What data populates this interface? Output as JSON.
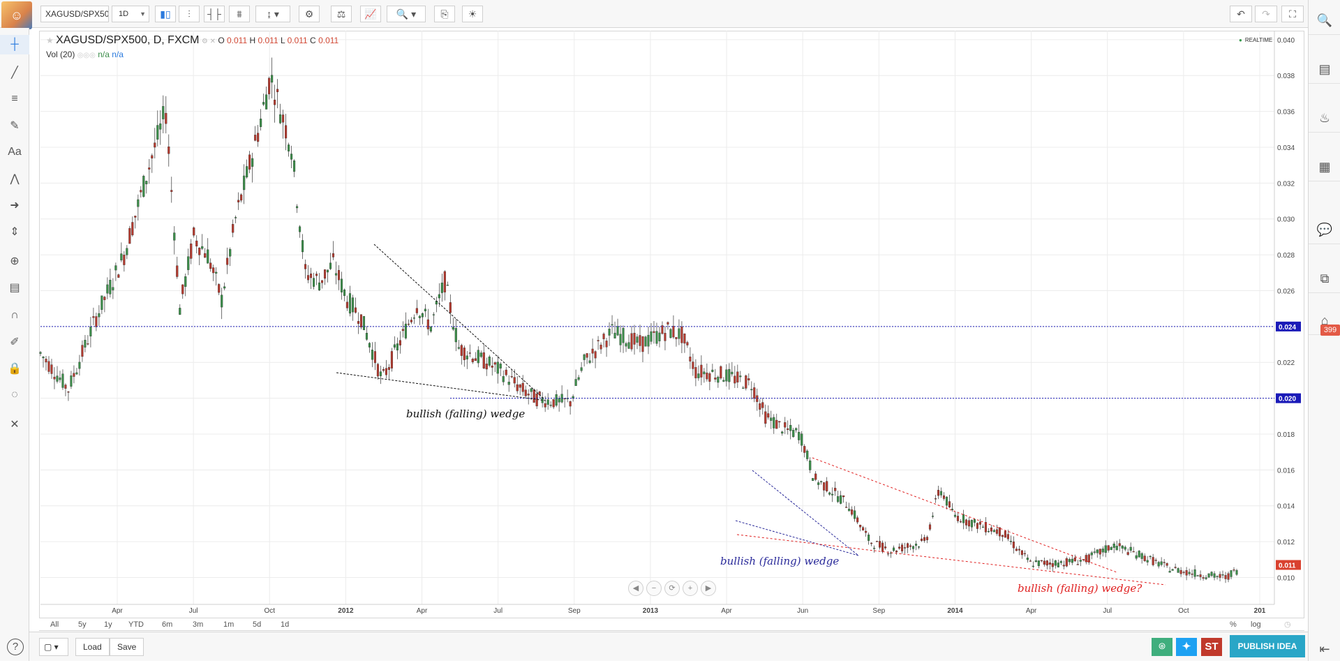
{
  "header": {
    "symbol": "XAGUSD/SPX500",
    "interval": "1D"
  },
  "legend": {
    "title": "XAGUSD/SPX500, D, FXCM",
    "o_label": "O",
    "o_value": "0.011",
    "h_label": "H",
    "h_value": "0.011",
    "l_label": "L",
    "l_value": "0.011",
    "c_label": "C",
    "c_value": "0.011",
    "vol_label": "Vol (20)",
    "vol_value1": "n/a",
    "vol_value2": "n/a"
  },
  "realtime_label": "REALTIME",
  "left_tools": [
    "crosshair-icon",
    "trend-line-icon",
    "horizontal-lines-icon",
    "brush-icon",
    "text-tool-icon",
    "pattern-icon",
    "arrow-icon",
    "measure-icon",
    "zoom-icon",
    "ruler-icon",
    "magnet-icon",
    "pencil-lock-icon",
    "lock-icon",
    "eye-hide-icon",
    "settings-tools-icon"
  ],
  "right_tools": [
    "search-icon",
    "news-icon",
    "hot-icon",
    "calendar-icon",
    "chat-icon",
    "ideas-icon",
    "alerts-icon"
  ],
  "right_badge": "399",
  "top_tools": [
    "candles-icon",
    "indicator-icon",
    "bars-icon",
    "compare-icon",
    "cursor-dropdown-icon",
    "gear-icon",
    "scales-icon",
    "studies-icon",
    "search-zoom-icon",
    "snapshot-icon",
    "idea-icon"
  ],
  "top_right_tools": [
    "undo-icon",
    "redo-icon",
    "fullscreen-icon"
  ],
  "chart_data": {
    "type": "candlestick",
    "y_ticks": [
      "0.040",
      "0.038",
      "0.036",
      "0.034",
      "0.032",
      "0.030",
      "0.028",
      "0.026",
      "0.024",
      "0.022",
      "0.020",
      "0.018",
      "0.016",
      "0.014",
      "0.012",
      "0.010"
    ],
    "ylim": [
      0.0085,
      0.0405
    ],
    "x_ticks": [
      "Apr",
      "Jul",
      "Oct",
      "2012",
      "Apr",
      "Jul",
      "Sep",
      "2013",
      "Apr",
      "Jun",
      "Sep",
      "2014",
      "Apr",
      "Jul",
      "Oct",
      "201"
    ],
    "price_series": [
      [
        0,
        0.0225
      ],
      [
        0.02,
        0.0205
      ],
      [
        0.04,
        0.0245
      ],
      [
        0.06,
        0.028
      ],
      [
        0.08,
        0.0335
      ],
      [
        0.09,
        0.036
      ],
      [
        0.1,
        0.025
      ],
      [
        0.11,
        0.029
      ],
      [
        0.12,
        0.028
      ],
      [
        0.13,
        0.0255
      ],
      [
        0.14,
        0.03
      ],
      [
        0.155,
        0.0345
      ],
      [
        0.165,
        0.038
      ],
      [
        0.18,
        0.034
      ],
      [
        0.19,
        0.027
      ],
      [
        0.2,
        0.0265
      ],
      [
        0.21,
        0.0275
      ],
      [
        0.22,
        0.0255
      ],
      [
        0.23,
        0.0245
      ],
      [
        0.245,
        0.021
      ],
      [
        0.26,
        0.0235
      ],
      [
        0.27,
        0.0252
      ],
      [
        0.28,
        0.024
      ],
      [
        0.29,
        0.0265
      ],
      [
        0.3,
        0.0228
      ],
      [
        0.32,
        0.022
      ],
      [
        0.33,
        0.0215
      ],
      [
        0.345,
        0.0205
      ],
      [
        0.355,
        0.02
      ],
      [
        0.37,
        0.0198
      ],
      [
        0.38,
        0.0198
      ],
      [
        0.39,
        0.022
      ],
      [
        0.41,
        0.0237
      ],
      [
        0.43,
        0.023
      ],
      [
        0.45,
        0.0238
      ],
      [
        0.46,
        0.0235
      ],
      [
        0.47,
        0.0215
      ],
      [
        0.49,
        0.0213
      ],
      [
        0.51,
        0.0208
      ],
      [
        0.52,
        0.019
      ],
      [
        0.535,
        0.0182
      ],
      [
        0.545,
        0.018
      ],
      [
        0.555,
        0.0155
      ],
      [
        0.565,
        0.015
      ],
      [
        0.58,
        0.014
      ],
      [
        0.595,
        0.012
      ],
      [
        0.61,
        0.0115
      ],
      [
        0.62,
        0.0117
      ],
      [
        0.635,
        0.012
      ],
      [
        0.645,
        0.015
      ],
      [
        0.655,
        0.0135
      ],
      [
        0.67,
        0.013
      ],
      [
        0.69,
        0.0125
      ],
      [
        0.71,
        0.0108
      ],
      [
        0.73,
        0.0108
      ],
      [
        0.75,
        0.011
      ],
      [
        0.77,
        0.0118
      ],
      [
        0.79,
        0.0112
      ],
      [
        0.81,
        0.0105
      ],
      [
        0.83,
        0.0102
      ],
      [
        0.85,
        0.01
      ],
      [
        0.86,
        0.0105
      ]
    ],
    "hlines": [
      {
        "value": 0.024,
        "label": "0.024",
        "color": "#1a1ab8"
      },
      {
        "value": 0.02,
        "label": "0.020",
        "color": "#1a1ab8"
      }
    ],
    "last_price_label": "0.011",
    "annotations": [
      {
        "text": "bullish (falling) wedge",
        "color": "#111111"
      },
      {
        "text": "bullish (falling) wedge",
        "color": "#2a2a9a"
      },
      {
        "text": "bullish (falling) wedge?",
        "color": "#e02020"
      }
    ],
    "scale_percent": "%",
    "scale_log": "log"
  },
  "range_buttons": [
    "All",
    "5y",
    "1y",
    "YTD",
    "6m",
    "3m",
    "1m",
    "5d",
    "1d"
  ],
  "bottom": {
    "load": "Load",
    "save": "Save",
    "publish": "PUBLISH IDEA",
    "st": "ST"
  },
  "colors": {
    "up": "#3c8d4a",
    "down": "#b23a2f",
    "accent": "#29a6c7"
  }
}
